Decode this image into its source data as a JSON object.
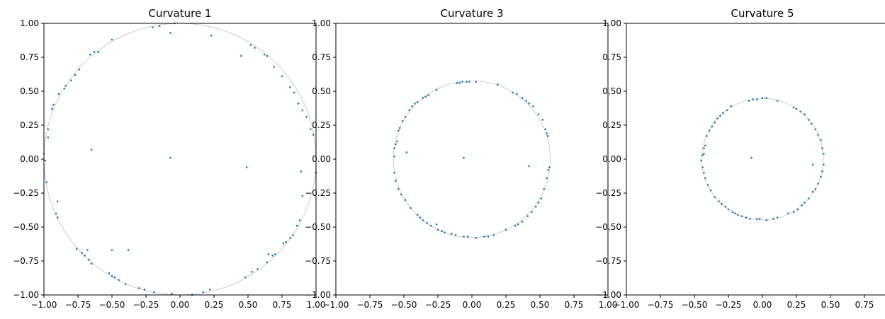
{
  "chart_data": [
    {
      "type": "scatter",
      "title": "Curvature 1",
      "xlabel": "",
      "ylabel": "",
      "xlim": [
        -1,
        1
      ],
      "ylim": [
        -1,
        1
      ],
      "xticks": [
        "−1.00",
        "−0.75",
        "−0.50",
        "−0.25",
        "0.00",
        "0.25",
        "0.50",
        "0.75",
        "1.00"
      ],
      "yticks": [
        "−1.00",
        "−0.75",
        "−0.50",
        "−0.25",
        "0.00",
        "0.25",
        "0.50",
        "0.75",
        "1.00"
      ],
      "grid": false,
      "reference_circle_radius": 1.0,
      "points": [
        [
          -0.04,
          1.0
        ],
        [
          -0.07,
          0.93
        ],
        [
          -0.15,
          0.98
        ],
        [
          -0.2,
          0.97
        ],
        [
          0.23,
          0.91
        ],
        [
          -0.5,
          0.88
        ],
        [
          -0.6,
          0.79
        ],
        [
          -0.63,
          0.79
        ],
        [
          -0.66,
          0.77
        ],
        [
          -0.74,
          0.66
        ],
        [
          -0.77,
          0.62
        ],
        [
          -0.8,
          0.58
        ],
        [
          -0.84,
          0.54
        ],
        [
          -0.85,
          0.52
        ],
        [
          -0.89,
          0.48
        ],
        [
          -0.93,
          0.4
        ],
        [
          -0.94,
          0.37
        ],
        [
          -0.97,
          0.22
        ],
        [
          -0.97,
          0.16
        ],
        [
          -1.0,
          0.04
        ],
        [
          -0.99,
          -0.01
        ],
        [
          -0.98,
          -0.17
        ],
        [
          -0.65,
          0.07
        ],
        [
          -0.07,
          0.01
        ],
        [
          0.49,
          -0.06
        ],
        [
          0.45,
          0.76
        ],
        [
          0.52,
          0.84
        ],
        [
          0.55,
          0.82
        ],
        [
          0.62,
          0.77
        ],
        [
          0.64,
          0.76
        ],
        [
          0.69,
          0.68
        ],
        [
          0.75,
          0.61
        ],
        [
          0.81,
          0.53
        ],
        [
          0.84,
          0.49
        ],
        [
          0.87,
          0.41
        ],
        [
          0.9,
          0.36
        ],
        [
          0.93,
          0.31
        ],
        [
          0.96,
          0.22
        ],
        [
          0.98,
          0.18
        ],
        [
          1.0,
          -0.1
        ],
        [
          0.89,
          -0.09
        ],
        [
          0.9,
          -0.27
        ],
        [
          0.88,
          -0.45
        ],
        [
          0.86,
          -0.49
        ],
        [
          0.83,
          -0.56
        ],
        [
          0.81,
          -0.58
        ],
        [
          0.78,
          -0.61
        ],
        [
          0.76,
          -0.62
        ],
        [
          0.65,
          -0.7
        ],
        [
          0.68,
          -0.71
        ],
        [
          0.7,
          -0.7
        ],
        [
          0.64,
          -0.76
        ],
        [
          0.57,
          -0.81
        ],
        [
          0.53,
          -0.83
        ],
        [
          0.48,
          -0.87
        ],
        [
          0.22,
          -0.96
        ],
        [
          0.17,
          -0.98
        ],
        [
          0.09,
          -1.0
        ],
        [
          -0.06,
          -0.99
        ],
        [
          -0.19,
          -0.98
        ],
        [
          -0.26,
          -0.96
        ],
        [
          -0.3,
          -0.95
        ],
        [
          -0.4,
          -0.92
        ],
        [
          -0.45,
          -0.89
        ],
        [
          -0.48,
          -0.87
        ],
        [
          -0.5,
          -0.86
        ],
        [
          -0.52,
          -0.84
        ],
        [
          -0.5,
          -0.67
        ],
        [
          -0.38,
          -0.67
        ],
        [
          -0.68,
          -0.67
        ],
        [
          -0.7,
          -0.71
        ],
        [
          -0.67,
          -0.74
        ],
        [
          -0.65,
          -0.77
        ],
        [
          -0.72,
          -0.69
        ],
        [
          -0.76,
          -0.66
        ],
        [
          -0.9,
          -0.31
        ],
        [
          -0.91,
          -0.4
        ],
        [
          -0.9,
          -0.43
        ]
      ]
    },
    {
      "type": "scatter",
      "title": "Curvature 3",
      "xlabel": "",
      "ylabel": "",
      "xlim": [
        -1,
        1
      ],
      "ylim": [
        -1,
        1
      ],
      "xticks": [
        "−1.00",
        "−0.75",
        "−0.50",
        "−0.25",
        "0.00",
        "0.25",
        "0.50",
        "0.75",
        "1.00"
      ],
      "yticks": [
        "−1.00",
        "−0.75",
        "−0.50",
        "−0.25",
        "0.00",
        "0.25",
        "0.50",
        "0.75",
        "1.00"
      ],
      "grid": false,
      "reference_circle_radius": 0.577,
      "points": [
        [
          -0.11,
          0.56
        ],
        [
          -0.09,
          0.56
        ],
        [
          -0.07,
          0.57
        ],
        [
          -0.04,
          0.57
        ],
        [
          -0.02,
          0.57
        ],
        [
          0.03,
          0.57
        ],
        [
          0.19,
          0.55
        ],
        [
          0.3,
          0.49
        ],
        [
          0.33,
          0.48
        ],
        [
          0.37,
          0.45
        ],
        [
          0.4,
          0.43
        ],
        [
          0.42,
          0.41
        ],
        [
          0.45,
          0.39
        ],
        [
          0.49,
          0.33
        ],
        [
          0.52,
          0.29
        ],
        [
          0.54,
          0.22
        ],
        [
          0.55,
          0.19
        ],
        [
          0.56,
          0.17
        ],
        [
          0.57,
          -0.06
        ],
        [
          0.56,
          -0.08
        ],
        [
          0.55,
          -0.14
        ],
        [
          0.53,
          -0.22
        ],
        [
          0.51,
          -0.29
        ],
        [
          0.49,
          -0.32
        ],
        [
          0.47,
          -0.35
        ],
        [
          0.44,
          -0.39
        ],
        [
          0.41,
          -0.42
        ],
        [
          0.37,
          -0.46
        ],
        [
          0.34,
          -0.48
        ],
        [
          0.32,
          -0.49
        ],
        [
          0.25,
          -0.52
        ],
        [
          0.16,
          -0.56
        ],
        [
          0.12,
          -0.57
        ],
        [
          0.09,
          -0.57
        ],
        [
          0.03,
          -0.58
        ],
        [
          -0.03,
          -0.57
        ],
        [
          -0.06,
          -0.57
        ],
        [
          -0.12,
          -0.56
        ],
        [
          -0.15,
          -0.55
        ],
        [
          -0.2,
          -0.54
        ],
        [
          -0.22,
          -0.53
        ],
        [
          -0.25,
          -0.52
        ],
        [
          -0.26,
          -0.48
        ],
        [
          -0.3,
          -0.49
        ],
        [
          -0.33,
          -0.47
        ],
        [
          -0.36,
          -0.45
        ],
        [
          -0.38,
          -0.43
        ],
        [
          -0.4,
          -0.41
        ],
        [
          -0.45,
          -0.36
        ],
        [
          -0.49,
          -0.3
        ],
        [
          -0.52,
          -0.26
        ],
        [
          -0.54,
          -0.22
        ],
        [
          -0.56,
          -0.16
        ],
        [
          -0.57,
          -0.1
        ],
        [
          -0.57,
          0.02
        ],
        [
          -0.57,
          0.08
        ],
        [
          -0.56,
          0.11
        ],
        [
          -0.55,
          0.13
        ],
        [
          -0.54,
          0.21
        ],
        [
          -0.53,
          0.23
        ],
        [
          -0.51,
          0.28
        ],
        [
          -0.49,
          0.31
        ],
        [
          -0.46,
          0.36
        ],
        [
          -0.44,
          0.39
        ],
        [
          -0.42,
          0.41
        ],
        [
          -0.4,
          0.42
        ],
        [
          -0.36,
          0.45
        ],
        [
          -0.34,
          0.46
        ],
        [
          -0.32,
          0.47
        ],
        [
          -0.26,
          0.51
        ],
        [
          -0.48,
          0.05
        ],
        [
          -0.06,
          0.01
        ],
        [
          0.42,
          -0.05
        ]
      ]
    },
    {
      "type": "scatter",
      "title": "Curvature 5",
      "xlabel": "",
      "ylabel": "",
      "xlim": [
        -1,
        1
      ],
      "ylim": [
        -1,
        1
      ],
      "xticks": [
        "−1.00",
        "−0.75",
        "−0.50",
        "−0.25",
        "0.00",
        "0.25",
        "0.50",
        "0.75",
        "1.00"
      ],
      "yticks": [
        "−1.00",
        "−0.75",
        "−0.50",
        "−0.25",
        "0.00",
        "0.25",
        "0.50",
        "0.75",
        "1.00"
      ],
      "grid": false,
      "reference_circle_radius": 0.447,
      "points": [
        [
          -0.1,
          0.43
        ],
        [
          -0.07,
          0.44
        ],
        [
          -0.04,
          0.44
        ],
        [
          0.0,
          0.45
        ],
        [
          0.03,
          0.45
        ],
        [
          0.11,
          0.43
        ],
        [
          0.23,
          0.38
        ],
        [
          0.25,
          0.37
        ],
        [
          0.28,
          0.35
        ],
        [
          0.31,
          0.33
        ],
        [
          0.34,
          0.29
        ],
        [
          0.36,
          0.26
        ],
        [
          0.39,
          0.22
        ],
        [
          0.41,
          0.18
        ],
        [
          0.43,
          0.14
        ],
        [
          0.44,
          0.08
        ],
        [
          0.45,
          0.04
        ],
        [
          0.45,
          -0.04
        ],
        [
          0.44,
          -0.09
        ],
        [
          0.43,
          -0.13
        ],
        [
          0.41,
          -0.18
        ],
        [
          0.39,
          -0.22
        ],
        [
          0.37,
          -0.24
        ],
        [
          0.34,
          -0.29
        ],
        [
          0.31,
          -0.32
        ],
        [
          0.29,
          -0.34
        ],
        [
          0.26,
          -0.37
        ],
        [
          0.23,
          -0.39
        ],
        [
          0.19,
          -0.4
        ],
        [
          0.11,
          -0.43
        ],
        [
          0.08,
          -0.44
        ],
        [
          0.03,
          -0.45
        ],
        [
          -0.02,
          -0.44
        ],
        [
          -0.04,
          -0.44
        ],
        [
          -0.09,
          -0.44
        ],
        [
          -0.12,
          -0.43
        ],
        [
          -0.15,
          -0.42
        ],
        [
          -0.18,
          -0.41
        ],
        [
          -0.2,
          -0.4
        ],
        [
          -0.22,
          -0.39
        ],
        [
          -0.25,
          -0.37
        ],
        [
          -0.27,
          -0.35
        ],
        [
          -0.3,
          -0.33
        ],
        [
          -0.32,
          -0.31
        ],
        [
          -0.35,
          -0.28
        ],
        [
          -0.38,
          -0.23
        ],
        [
          -0.4,
          -0.19
        ],
        [
          -0.42,
          -0.14
        ],
        [
          -0.43,
          -0.1
        ],
        [
          -0.44,
          -0.06
        ],
        [
          -0.45,
          -0.01
        ],
        [
          -0.44,
          0.03
        ],
        [
          -0.43,
          0.08
        ],
        [
          -0.42,
          0.1
        ],
        [
          -0.41,
          0.17
        ],
        [
          -0.39,
          0.21
        ],
        [
          -0.37,
          0.24
        ],
        [
          -0.35,
          0.27
        ],
        [
          -0.33,
          0.3
        ],
        [
          -0.31,
          0.32
        ],
        [
          -0.29,
          0.34
        ],
        [
          -0.26,
          0.36
        ],
        [
          -0.23,
          0.39
        ],
        [
          -0.43,
          0.04
        ],
        [
          -0.08,
          0.01
        ],
        [
          0.37,
          -0.04
        ]
      ]
    }
  ],
  "colors": {
    "points": "#1f77b4",
    "reference_circle": "#cccccc",
    "axes": "#000000"
  }
}
